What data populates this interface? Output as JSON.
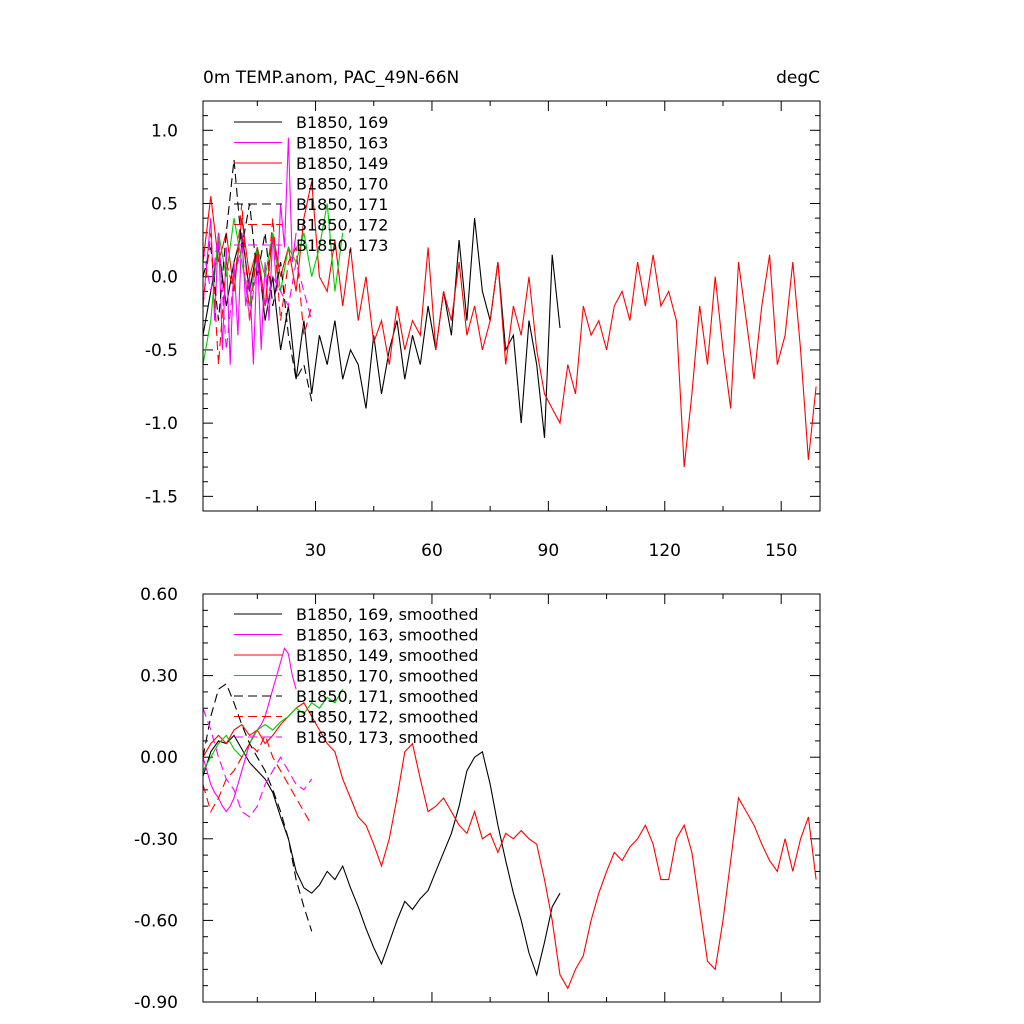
{
  "chart_data": [
    {
      "type": "line",
      "title": "0m TEMP.anom, PAC_49N-66N",
      "units": "degC",
      "xlim": [
        1,
        160
      ],
      "ylim": [
        -1.6,
        1.2
      ],
      "xticks": [
        30,
        60,
        90,
        120,
        150
      ],
      "xtick_labels": [
        "30",
        "60",
        "90",
        "120",
        "150"
      ],
      "yticks": [
        1.0,
        0.5,
        0.0,
        -0.5,
        -1.0,
        -1.5
      ],
      "ytick_labels": [
        "1.0",
        "0.5",
        "0.0",
        "-0.5",
        "-1.0",
        "-1.5"
      ],
      "legend_position": "top-left",
      "series": [
        {
          "name": "B1850, 169",
          "color": "#000000",
          "dash": "solid",
          "x": [
            1,
            3,
            5,
            7,
            9,
            11,
            13,
            15,
            17,
            19,
            21,
            23,
            25,
            27,
            29,
            31,
            33,
            35,
            37,
            39,
            41,
            43,
            45,
            47,
            49,
            51,
            53,
            55,
            57,
            59,
            61,
            63,
            65,
            67,
            69,
            71,
            73,
            75,
            77,
            79,
            81,
            83,
            85,
            87,
            89,
            91,
            93
          ],
          "values": [
            -0.4,
            -0.1,
            0.2,
            -0.2,
            0.1,
            0.3,
            -0.1,
            0.2,
            -0.3,
            0.0,
            -0.5,
            -0.2,
            -0.7,
            -0.3,
            -0.8,
            -0.4,
            -0.6,
            -0.3,
            -0.7,
            -0.5,
            -0.6,
            -0.9,
            -0.4,
            -0.8,
            -0.5,
            -0.3,
            -0.7,
            -0.4,
            -0.6,
            -0.2,
            -0.5,
            -0.1,
            -0.4,
            0.25,
            -0.3,
            0.4,
            -0.1,
            -0.3,
            0.1,
            -0.5,
            -0.4,
            -1.0,
            -0.3,
            -0.6,
            -1.1,
            0.15,
            -0.35
          ]
        },
        {
          "name": "B1850, 163",
          "color": "#ff00ff",
          "dash": "solid",
          "x": [
            1,
            2,
            3,
            4,
            5,
            6,
            7,
            8,
            9,
            10,
            11,
            12,
            13,
            14,
            15,
            16,
            17,
            18,
            19,
            20,
            21,
            22,
            23,
            24,
            25
          ],
          "values": [
            -0.2,
            0.1,
            0.4,
            -0.3,
            0.3,
            -0.5,
            0.2,
            -0.6,
            0.1,
            -0.4,
            0.3,
            -0.2,
            0.0,
            -0.6,
            0.2,
            -0.5,
            0.1,
            -0.3,
            0.3,
            -0.1,
            0.5,
            0.2,
            0.95,
            0.1,
            0.3
          ]
        },
        {
          "name": "B1850, 149",
          "color": "#ff0000",
          "dash": "solid",
          "x": [
            1,
            3,
            5,
            7,
            9,
            11,
            13,
            15,
            17,
            19,
            21,
            23,
            25,
            27,
            29,
            31,
            33,
            35,
            37,
            39,
            41,
            43,
            45,
            47,
            49,
            51,
            53,
            55,
            57,
            59,
            61,
            63,
            65,
            67,
            69,
            71,
            73,
            75,
            77,
            79,
            81,
            83,
            85,
            87,
            89,
            91,
            93,
            95,
            97,
            99,
            101,
            103,
            105,
            107,
            109,
            111,
            113,
            115,
            117,
            119,
            121,
            123,
            125,
            127,
            129,
            131,
            133,
            135,
            137,
            139,
            141,
            143,
            145,
            147,
            149,
            151,
            153,
            155,
            157,
            159
          ],
          "values": [
            0.1,
            0.55,
            0.1,
            0.3,
            -0.1,
            0.4,
            0.0,
            0.2,
            -0.2,
            0.3,
            0.0,
            0.2,
            -0.1,
            0.4,
            0.65,
            0.0,
            -0.1,
            0.25,
            -0.2,
            0.2,
            -0.3,
            0.0,
            -0.45,
            -0.3,
            -0.6,
            -0.2,
            -0.5,
            -0.3,
            -0.4,
            0.2,
            -0.5,
            -0.1,
            -0.3,
            0.1,
            -0.4,
            -0.2,
            -0.5,
            -0.3,
            0.1,
            -0.6,
            -0.2,
            -0.4,
            0.0,
            -0.5,
            -0.8,
            -0.9,
            -1.0,
            -0.6,
            -0.8,
            -0.2,
            -0.4,
            -0.3,
            -0.5,
            -0.2,
            -0.1,
            -0.3,
            0.1,
            -0.2,
            0.15,
            -0.2,
            -0.1,
            -0.3,
            -1.3,
            -0.8,
            -0.2,
            -0.6,
            0.0,
            -0.5,
            -0.9,
            0.1,
            -0.3,
            -0.7,
            -0.2,
            0.15,
            -0.6,
            -0.4,
            0.1,
            -0.5,
            -1.25,
            -0.75
          ]
        },
        {
          "name": "B1850, 170",
          "color": "#00cc00",
          "dash": "solid",
          "x": [
            1,
            3,
            5,
            7,
            9,
            11,
            13,
            15,
            17,
            19,
            21,
            23,
            25,
            27,
            29,
            31,
            33,
            35,
            37
          ],
          "values": [
            -0.6,
            -0.3,
            0.3,
            0.0,
            0.4,
            0.1,
            -0.2,
            0.2,
            0.0,
            0.3,
            -0.1,
            0.2,
            0.1,
            0.3,
            0.0,
            0.2,
            0.5,
            -0.1,
            0.3
          ]
        },
        {
          "name": "B1850, 171",
          "color": "#000000",
          "dash": "dashed",
          "x": [
            1,
            3,
            5,
            7,
            9,
            11,
            13,
            15,
            17,
            19,
            21,
            23,
            25,
            27,
            29
          ],
          "values": [
            0.0,
            0.2,
            -0.3,
            0.3,
            0.8,
            0.2,
            0.5,
            0.0,
            0.3,
            -0.2,
            0.1,
            -0.4,
            -0.7,
            -0.6,
            -0.85
          ]
        },
        {
          "name": "B1850, 172",
          "color": "#ff0000",
          "dash": "dashed",
          "x": [
            1,
            3,
            5,
            7,
            9,
            11,
            13,
            15,
            17,
            19,
            21,
            23,
            25,
            27,
            29
          ],
          "values": [
            -0.2,
            0.3,
            -0.6,
            0.1,
            -0.1,
            0.5,
            -0.3,
            0.2,
            -0.2,
            0.4,
            -0.3,
            0.1,
            0.2,
            -0.4,
            -0.2
          ]
        },
        {
          "name": "B1850, 173",
          "color": "#ff00ff",
          "dash": "dashed",
          "x": [
            1,
            3,
            5,
            7,
            9,
            11,
            13,
            15,
            17,
            19,
            21,
            23,
            25,
            27,
            29
          ],
          "values": [
            0.2,
            -0.1,
            0.3,
            -0.5,
            0.0,
            0.2,
            -0.3,
            0.1,
            -0.2,
            0.0,
            -0.1,
            -0.2,
            0.1,
            -0.1,
            -0.3
          ]
        }
      ]
    },
    {
      "type": "line",
      "xlim": [
        1,
        160
      ],
      "ylim": [
        -0.9,
        0.6
      ],
      "xticks": [
        30,
        60,
        90,
        120,
        150
      ],
      "yticks": [
        0.6,
        0.3,
        0.0,
        -0.3,
        -0.6,
        -0.9
      ],
      "ytick_labels": [
        "0.60",
        "0.30",
        "0.00",
        "-0.30",
        "-0.60",
        "-0.90"
      ],
      "legend_position": "top-left",
      "series": [
        {
          "name": "B1850, 169, smoothed",
          "color": "#000000",
          "dash": "solid",
          "x": [
            1,
            3,
            5,
            7,
            9,
            11,
            13,
            15,
            17,
            19,
            21,
            23,
            25,
            27,
            29,
            31,
            33,
            35,
            37,
            39,
            41,
            43,
            45,
            47,
            49,
            51,
            53,
            55,
            57,
            59,
            61,
            63,
            65,
            67,
            69,
            71,
            73,
            75,
            77,
            79,
            81,
            83,
            85,
            87,
            89,
            91,
            93
          ],
          "values": [
            -0.07,
            0.02,
            0.06,
            0.05,
            0.08,
            0.03,
            -0.02,
            -0.05,
            -0.08,
            -0.13,
            -0.22,
            -0.3,
            -0.42,
            -0.48,
            -0.5,
            -0.47,
            -0.42,
            -0.45,
            -0.4,
            -0.48,
            -0.55,
            -0.63,
            -0.7,
            -0.76,
            -0.68,
            -0.6,
            -0.53,
            -0.56,
            -0.52,
            -0.49,
            -0.42,
            -0.35,
            -0.28,
            -0.18,
            -0.05,
            0.0,
            0.02,
            -0.1,
            -0.25,
            -0.38,
            -0.5,
            -0.6,
            -0.72,
            -0.8,
            -0.68,
            -0.55,
            -0.5
          ]
        },
        {
          "name": "B1850, 163, smoothed",
          "color": "#ff00ff",
          "dash": "solid",
          "x": [
            1,
            2,
            3,
            4,
            5,
            6,
            7,
            8,
            9,
            10,
            11,
            12,
            13,
            14,
            15,
            16,
            17,
            18,
            19,
            20,
            21,
            22,
            23,
            24,
            25
          ],
          "values": [
            0.0,
            -0.05,
            -0.1,
            -0.13,
            -0.15,
            -0.18,
            -0.2,
            -0.18,
            -0.15,
            -0.1,
            -0.05,
            0.0,
            0.05,
            0.08,
            0.1,
            0.12,
            0.15,
            0.2,
            0.25,
            0.3,
            0.35,
            0.4,
            0.38,
            0.3,
            0.25
          ]
        },
        {
          "name": "B1850, 149, smoothed",
          "color": "#ff0000",
          "dash": "solid",
          "x": [
            1,
            3,
            5,
            7,
            9,
            11,
            13,
            15,
            17,
            19,
            21,
            23,
            25,
            27,
            29,
            31,
            33,
            35,
            37,
            39,
            41,
            43,
            45,
            47,
            49,
            51,
            53,
            55,
            57,
            59,
            61,
            63,
            65,
            67,
            69,
            71,
            73,
            75,
            77,
            79,
            81,
            83,
            85,
            87,
            89,
            91,
            93,
            95,
            97,
            99,
            101,
            103,
            105,
            107,
            109,
            111,
            113,
            115,
            117,
            119,
            121,
            123,
            125,
            127,
            129,
            131,
            133,
            135,
            137,
            139,
            141,
            143,
            145,
            147,
            149,
            151,
            153,
            155,
            157,
            159
          ],
          "values": [
            0.0,
            0.05,
            0.08,
            0.05,
            0.1,
            0.12,
            0.08,
            0.1,
            0.05,
            0.08,
            0.12,
            0.15,
            0.18,
            0.2,
            0.15,
            0.1,
            0.05,
            0.02,
            -0.08,
            -0.15,
            -0.22,
            -0.25,
            -0.32,
            -0.4,
            -0.3,
            -0.15,
            0.02,
            0.05,
            -0.08,
            -0.2,
            -0.18,
            -0.15,
            -0.2,
            -0.25,
            -0.28,
            -0.2,
            -0.3,
            -0.28,
            -0.35,
            -0.28,
            -0.3,
            -0.27,
            -0.3,
            -0.32,
            -0.45,
            -0.6,
            -0.8,
            -0.85,
            -0.78,
            -0.73,
            -0.6,
            -0.5,
            -0.42,
            -0.35,
            -0.38,
            -0.33,
            -0.3,
            -0.25,
            -0.32,
            -0.45,
            -0.45,
            -0.3,
            -0.25,
            -0.35,
            -0.55,
            -0.75,
            -0.78,
            -0.6,
            -0.38,
            -0.15,
            -0.2,
            -0.25,
            -0.32,
            -0.38,
            -0.42,
            -0.3,
            -0.42,
            -0.3,
            -0.22,
            -0.45
          ]
        },
        {
          "name": "B1850, 170, smoothed",
          "color": "#00cc00",
          "dash": "solid",
          "x": [
            1,
            3,
            5,
            7,
            9,
            11,
            13,
            15,
            17,
            19,
            21,
            23,
            25,
            27,
            29,
            31,
            33,
            35,
            37
          ],
          "values": [
            -0.05,
            0.0,
            0.05,
            0.08,
            0.03,
            0.0,
            0.05,
            0.1,
            0.12,
            0.1,
            0.13,
            0.15,
            0.18,
            0.16,
            0.2,
            0.18,
            0.22,
            0.2,
            0.25
          ]
        },
        {
          "name": "B1850, 171, smoothed",
          "color": "#000000",
          "dash": "dashed",
          "x": [
            1,
            3,
            5,
            7,
            9,
            11,
            13,
            15,
            17,
            19,
            21,
            23,
            25,
            27,
            29
          ],
          "values": [
            0.0,
            0.15,
            0.25,
            0.27,
            0.2,
            0.12,
            0.05,
            0.0,
            -0.05,
            -0.12,
            -0.2,
            -0.3,
            -0.45,
            -0.55,
            -0.64
          ]
        },
        {
          "name": "B1850, 172, smoothed",
          "color": "#ff0000",
          "dash": "dashed",
          "x": [
            1,
            3,
            5,
            7,
            9,
            11,
            13,
            15,
            17,
            19,
            21,
            23,
            25,
            27,
            29
          ],
          "values": [
            -0.1,
            -0.2,
            -0.15,
            -0.08,
            -0.05,
            0.0,
            0.05,
            0.02,
            0.08,
            0.0,
            -0.05,
            -0.1,
            -0.15,
            -0.2,
            -0.25
          ]
        },
        {
          "name": "B1850, 173, smoothed",
          "color": "#ff00ff",
          "dash": "dashed",
          "x": [
            1,
            3,
            5,
            7,
            9,
            11,
            13,
            15,
            17,
            19,
            21,
            23,
            25,
            27,
            29
          ],
          "values": [
            0.18,
            0.1,
            0.0,
            -0.08,
            -0.12,
            -0.2,
            -0.22,
            -0.18,
            -0.1,
            -0.05,
            0.0,
            -0.05,
            -0.1,
            -0.12,
            -0.08
          ]
        }
      ]
    }
  ]
}
